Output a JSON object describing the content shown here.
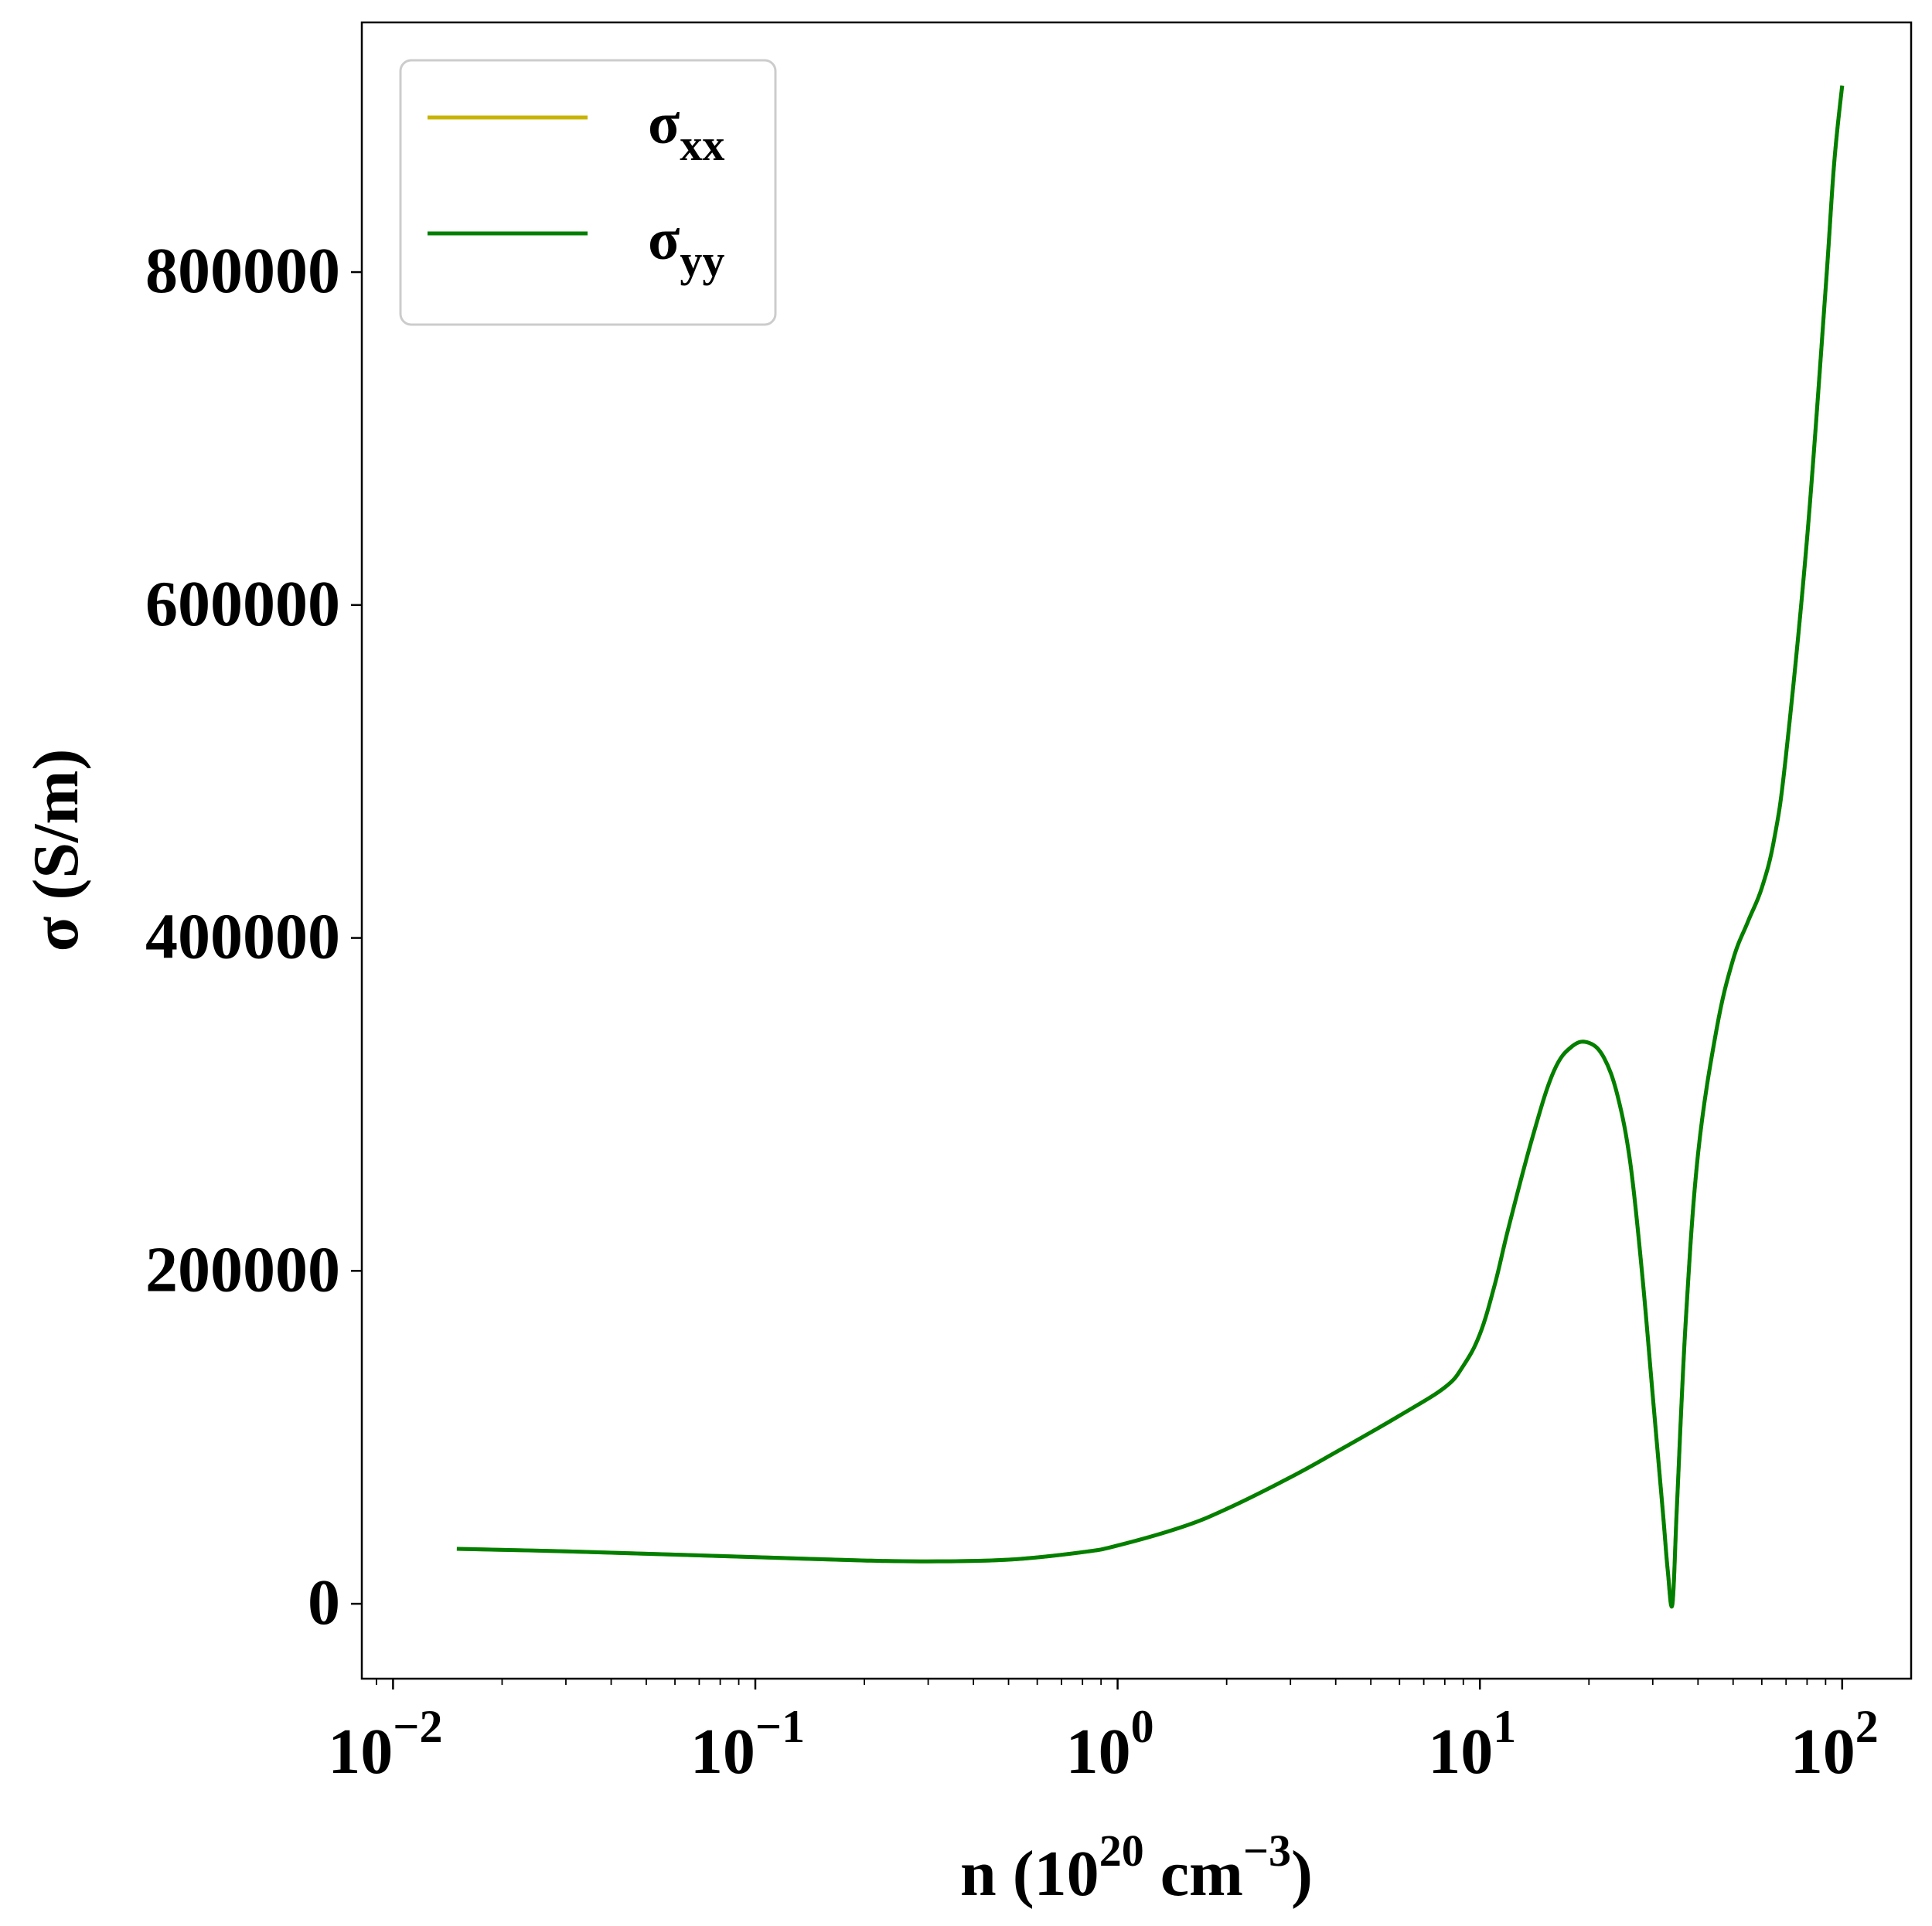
{
  "chart_data": {
    "type": "line",
    "x_scale": "log",
    "x_label": {
      "base": "n (10",
      "sup1": "20",
      "mid": " cm",
      "sup2": "−3",
      "end": ")"
    },
    "y_label": "σ (S/m)",
    "x_range": [
      0.0082,
      155
    ],
    "y_range": [
      -45000,
      950000
    ],
    "x_ticks": [
      {
        "value": 0.01,
        "base": "10",
        "exp": "−2"
      },
      {
        "value": 0.1,
        "base": "10",
        "exp": "−1"
      },
      {
        "value": 1,
        "base": "10",
        "exp": "0"
      },
      {
        "value": 10,
        "base": "10",
        "exp": "1"
      },
      {
        "value": 100,
        "base": "10",
        "exp": "2"
      }
    ],
    "y_ticks": [
      {
        "value": 0,
        "label": "0"
      },
      {
        "value": 200000,
        "label": "200000"
      },
      {
        "value": 400000,
        "label": "400000"
      },
      {
        "value": 600000,
        "label": "600000"
      },
      {
        "value": 800000,
        "label": "800000"
      }
    ],
    "grid": false,
    "legend_position": "top-left",
    "series": [
      {
        "name": "σxx",
        "name_main": "σ",
        "name_sub": "xx",
        "color": "#c8b400",
        "x": [
          0.015,
          0.03,
          0.06,
          0.1,
          0.2,
          0.3,
          0.5,
          0.8,
          1.0,
          1.5,
          2.0,
          3.0,
          4.0,
          6.0,
          8.0,
          9.0,
          10.0,
          11.0,
          12.0,
          14.0,
          16.0,
          18.0,
          20.0,
          22.0,
          24.0,
          26.0,
          28.0,
          30.0,
          32.0,
          33.0,
          34.0,
          35.0,
          37.0,
          40.0,
          45.0,
          50.0,
          55.0,
          60.0,
          65.0,
          70.0,
          80.0,
          90.0,
          95.0,
          100.0
        ],
        "y": [
          33000,
          31500,
          29500,
          28000,
          26000,
          25500,
          26500,
          31000,
          35000,
          46000,
          57000,
          76000,
          91000,
          113000,
          130000,
          143000,
          162000,
          192000,
          226000,
          281000,
          320000,
          335000,
          337000,
          328000,
          305000,
          265000,
          200000,
          125000,
          55000,
          20000,
          0,
          60000,
          170000,
          270000,
          345000,
          387000,
          410000,
          430000,
          460000,
          510000,
          640000,
          790000,
          865000,
          912000
        ]
      },
      {
        "name": "σyy",
        "name_main": "σ",
        "name_sub": "yy",
        "color": "#007f00",
        "x": [
          0.015,
          0.03,
          0.06,
          0.1,
          0.2,
          0.3,
          0.5,
          0.8,
          1.0,
          1.5,
          2.0,
          3.0,
          4.0,
          6.0,
          8.0,
          9.0,
          10.0,
          11.0,
          12.0,
          14.0,
          16.0,
          18.0,
          20.0,
          22.0,
          24.0,
          26.0,
          28.0,
          30.0,
          32.0,
          33.0,
          34.0,
          35.0,
          37.0,
          40.0,
          45.0,
          50.0,
          55.0,
          60.0,
          65.0,
          70.0,
          80.0,
          90.0,
          95.0,
          100.0
        ],
        "y": [
          33000,
          31500,
          29500,
          28000,
          26000,
          25500,
          26500,
          31000,
          35000,
          46000,
          57000,
          76000,
          91000,
          113000,
          130000,
          143000,
          162000,
          192000,
          226000,
          281000,
          320000,
          335000,
          337000,
          328000,
          305000,
          265000,
          200000,
          125000,
          55000,
          20000,
          0,
          60000,
          170000,
          270000,
          345000,
          387000,
          410000,
          430000,
          460000,
          510000,
          640000,
          790000,
          865000,
          912000
        ]
      }
    ]
  }
}
